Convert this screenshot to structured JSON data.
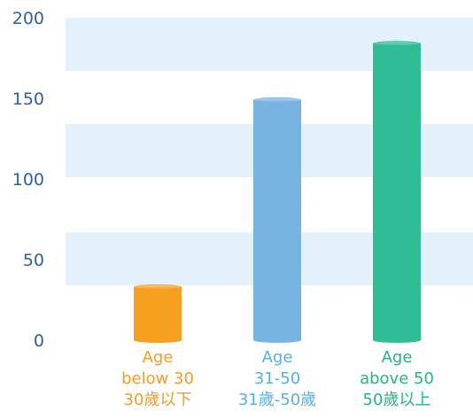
{
  "chart_data": {
    "type": "bar",
    "style": "cylinder",
    "categories": [
      [
        "Age",
        "below 30",
        "30歲以下"
      ],
      [
        "Age",
        "31-50",
        "31歲-50歲"
      ],
      [
        "Age",
        "above 50",
        "50歲以上"
      ]
    ],
    "values": [
      33,
      149,
      184
    ],
    "ylim": [
      0,
      200
    ],
    "yticks": [
      0,
      50,
      100,
      150,
      200
    ],
    "grid": "alternating horizontal bands",
    "colors": {
      "bars": [
        "#f7a020",
        "#78b4e2",
        "#2ebd94"
      ],
      "labels": [
        "#f39c26",
        "#56b0e8",
        "#26b386"
      ],
      "band": "#e3f2fa",
      "axis_text": "#2f5f9a"
    }
  }
}
